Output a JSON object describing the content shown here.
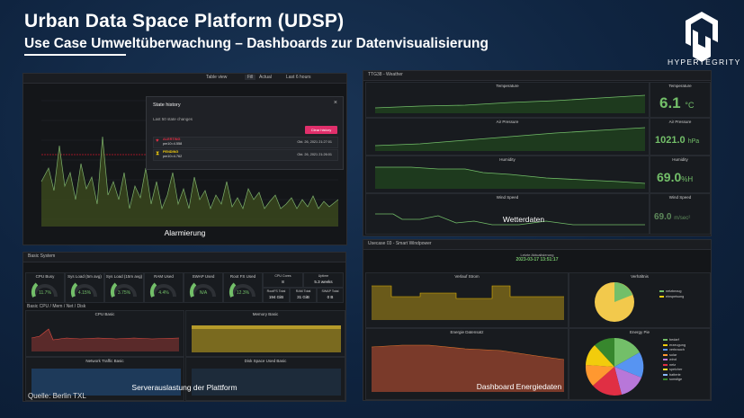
{
  "slide": {
    "title": "Urban Data Space Platform (UDSP)",
    "subtitle": "Use Case Umweltüberwachung – Dashboards zur Datenvisualisierung",
    "logo_text": "HYPERTEGRITY",
    "source_note": "Quelle: Berlin TXL"
  },
  "panels": {
    "alarm": {
      "caption": "Alarmierung",
      "toolbar": {
        "table_view": "Table view",
        "fill": "Fill",
        "actual": "Actual",
        "time_range": "Last 6 hours"
      },
      "modal": {
        "title": "State history",
        "subtitle": "Last 50 state changes",
        "clear_button": "Clear history",
        "close": "×",
        "rows": [
          {
            "state": "ALERTING",
            "value": "pm10=4.558",
            "time": "Okt. 26, 2021 21:27:01",
            "color": "#e02f44"
          },
          {
            "state": "PENDING",
            "value": "pm10=4.762",
            "time": "Okt. 26, 2021 21:26:01",
            "color": "#f2cc0c"
          }
        ]
      }
    },
    "weather": {
      "caption": "Wetterdaten",
      "header": "TTG38 - Weather",
      "charts": [
        {
          "title": "Temperature"
        },
        {
          "title": "Air Pressure"
        },
        {
          "title": "Humidity"
        },
        {
          "title": "Wind Speed"
        }
      ],
      "stats": [
        {
          "label": "Temperature",
          "value": "6.1",
          "unit": "°C"
        },
        {
          "label": "Air Pressure",
          "value": "1021.0",
          "unit": "hPa"
        },
        {
          "label": "Humidity",
          "value": "69.0",
          "unit": "%H"
        },
        {
          "label": "Wind Speed",
          "value": "69.0",
          "unit": "m/sec²"
        }
      ]
    },
    "server": {
      "caption": "Serverauslastung der Plattform",
      "header": "Basic System",
      "gauges": [
        {
          "label": "CPU Busy",
          "value": "11.7%"
        },
        {
          "label": "Sys Load (5m avg)",
          "value": "4.15%"
        },
        {
          "label": "Sys Load (15m avg)",
          "value": "3.75%"
        },
        {
          "label": "RAM Used",
          "value": "4.4%"
        },
        {
          "label": "SWAP Used",
          "value": "N/A"
        },
        {
          "label": "Root FS Used",
          "value": "12.3%"
        }
      ],
      "info": [
        {
          "label": "CPU Cores",
          "value": "8"
        },
        {
          "label": "Uptime",
          "value": "5.3 weeks"
        },
        {
          "label": "RootFS Total",
          "value": "194 GiB"
        },
        {
          "label": "RAM Total",
          "value": "31 GiB"
        },
        {
          "label": "SWAP Total",
          "value": "0 B"
        }
      ],
      "charts": [
        {
          "title": "CPU Basic"
        },
        {
          "title": "Memory Basic"
        },
        {
          "title": "Network Traffic Basic"
        },
        {
          "title": "Disk Space Used Basic"
        }
      ],
      "section": "Basic CPU / Mem / Net / Disk"
    },
    "energy": {
      "caption": "Dashboard Energiedaten",
      "header": "Usecase 03 - Smart Windpower",
      "timestamp_label": "Letzte Aktualisierung",
      "timestamp": "2023-03-17 13:51:17",
      "charts": [
        {
          "title": "Verlauf Strom"
        },
        {
          "title": "Energie Datensatz"
        },
        {
          "title": "Verhältnis"
        },
        {
          "title": "Energy Pie"
        }
      ],
      "legend_small": [
        {
          "label": "netzbezug",
          "color": "#73bf69"
        },
        {
          "label": "einspeisung",
          "color": "#f2cc0c"
        }
      ],
      "legend_pie": [
        {
          "label": "bedarf",
          "color": "#73bf69"
        },
        {
          "label": "erzeugung",
          "color": "#f2cc0c"
        },
        {
          "label": "verbrauch",
          "color": "#5794f2"
        },
        {
          "label": "solar",
          "color": "#ff9830"
        },
        {
          "label": "wind",
          "color": "#b877d9"
        },
        {
          "label": "netz",
          "color": "#e02f44"
        },
        {
          "label": "speicher",
          "color": "#fade2a"
        },
        {
          "label": "batterie",
          "color": "#8ab8ff"
        },
        {
          "label": "sonstige",
          "color": "#37872d"
        }
      ]
    }
  }
}
